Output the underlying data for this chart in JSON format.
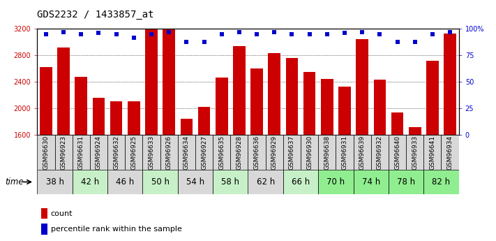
{
  "title": "GDS2232 / 1433857_at",
  "samples": [
    "GSM96630",
    "GSM96923",
    "GSM96631",
    "GSM96924",
    "GSM96632",
    "GSM96925",
    "GSM96633",
    "GSM96926",
    "GSM96634",
    "GSM96927",
    "GSM96635",
    "GSM96928",
    "GSM96636",
    "GSM96929",
    "GSM96637",
    "GSM96930",
    "GSM96638",
    "GSM96931",
    "GSM96639",
    "GSM96932",
    "GSM96640",
    "GSM96933",
    "GSM96641",
    "GSM96934"
  ],
  "counts": [
    2620,
    2920,
    2480,
    2160,
    2110,
    2110,
    3190,
    3200,
    1840,
    2020,
    2470,
    2940,
    2600,
    2840,
    2760,
    2550,
    2450,
    2330,
    3050,
    2430,
    1940,
    1720,
    2720,
    3130
  ],
  "percentile_ranks": [
    95,
    97,
    95,
    96,
    95,
    92,
    95,
    97,
    88,
    88,
    95,
    97,
    95,
    97,
    95,
    95,
    95,
    96,
    97,
    95,
    88,
    88,
    95,
    97
  ],
  "time_labels": [
    "38 h",
    "42 h",
    "46 h",
    "50 h",
    "54 h",
    "58 h",
    "62 h",
    "66 h",
    "70 h",
    "74 h",
    "78 h",
    "82 h"
  ],
  "group_sizes": [
    2,
    2,
    2,
    2,
    2,
    2,
    2,
    2,
    2,
    2,
    2,
    2
  ],
  "group_colors": [
    "#d8d8d8",
    "#c8f0c8",
    "#d8d8d8",
    "#c8f0c8",
    "#d8d8d8",
    "#c8f0c8",
    "#d8d8d8",
    "#c8f0c8",
    "#90ee90",
    "#90ee90",
    "#90ee90",
    "#90ee90"
  ],
  "sample_bg_colors": [
    "#d8d8d8",
    "#d8d8d8",
    "#d8d8d8",
    "#d8d8d8",
    "#d8d8d8",
    "#d8d8d8",
    "#d8d8d8",
    "#d8d8d8",
    "#d8d8d8",
    "#d8d8d8",
    "#d8d8d8",
    "#d8d8d8",
    "#d8d8d8",
    "#d8d8d8",
    "#d8d8d8",
    "#d8d8d8",
    "#d8d8d8",
    "#d8d8d8",
    "#d8d8d8",
    "#d8d8d8",
    "#d8d8d8",
    "#d8d8d8",
    "#d8d8d8",
    "#d8d8d8"
  ],
  "bar_color": "#cc0000",
  "percentile_color": "#0000cc",
  "ylim_left": [
    1600,
    3200
  ],
  "ylim_right": [
    0,
    100
  ],
  "yticks_left": [
    1600,
    2000,
    2400,
    2800,
    3200
  ],
  "yticks_right": [
    0,
    25,
    50,
    75,
    100
  ],
  "background_color": "#ffffff",
  "title_fontsize": 10,
  "tick_fontsize": 7,
  "legend_fontsize": 8,
  "time_label_fontsize": 8.5,
  "sample_label_fontsize": 6.5
}
